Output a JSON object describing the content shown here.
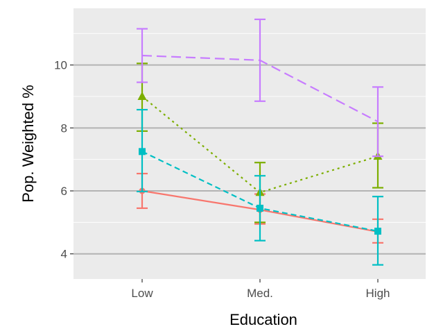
{
  "chart_data": {
    "type": "line",
    "title": "",
    "xlabel": "Education",
    "ylabel": "Pop. Weighted %",
    "categories": [
      "Low",
      "Med.",
      "High"
    ],
    "ylim": [
      3.2,
      11.8
    ],
    "yticks": [
      4,
      6,
      8,
      10
    ],
    "grid": "horizontal major",
    "legend": "none",
    "series": [
      {
        "color": "#F8766D",
        "marker": "circle",
        "linestyle": "solid",
        "values": [
          6.0,
          5.4,
          4.7
        ],
        "lower": [
          5.45,
          4.95,
          4.35
        ],
        "upper": [
          6.55,
          5.9,
          5.1
        ]
      },
      {
        "color": "#7CAE00",
        "marker": "triangle",
        "linestyle": "dotted",
        "values": [
          9.0,
          5.95,
          7.1
        ],
        "lower": [
          7.9,
          5.0,
          6.1
        ],
        "upper": [
          10.05,
          6.9,
          8.15
        ]
      },
      {
        "color": "#00BFC4",
        "marker": "square",
        "linestyle": "dashed",
        "values": [
          7.25,
          5.45,
          4.72
        ],
        "lower": [
          5.98,
          4.42,
          3.65
        ],
        "upper": [
          8.58,
          6.48,
          5.82
        ]
      },
      {
        "color": "#C77CFF",
        "marker": "none",
        "linestyle": "longdash",
        "values": [
          10.3,
          10.15,
          8.2
        ],
        "lower": [
          9.45,
          8.85,
          7.1
        ],
        "upper": [
          11.15,
          11.45,
          9.3
        ]
      }
    ]
  }
}
